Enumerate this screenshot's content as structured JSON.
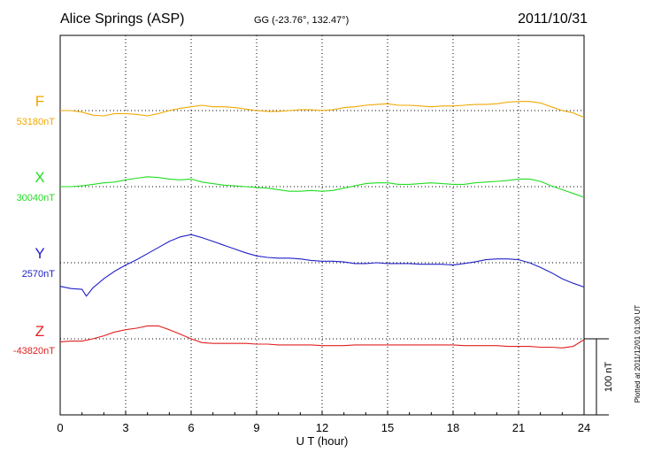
{
  "header": {
    "station": "Alice Springs (ASP)",
    "coords": "GG (-23.76°, 132.47°)",
    "date": "2011/10/31"
  },
  "plotted_note": "Plotted at 2011/12/01 01:00 UT",
  "scale_label": "100 nT",
  "chart_data": {
    "type": "line",
    "title": "Alice Springs (ASP)",
    "xlabel": "U T (hour)",
    "ylabel": "",
    "xlim": [
      0,
      24
    ],
    "xticks": [
      0,
      3,
      6,
      9,
      12,
      15,
      18,
      21,
      24
    ],
    "grid": true,
    "units": "nT",
    "scale_bar_nT": 100,
    "series": [
      {
        "name": "F",
        "baseline_label": "53180nT",
        "baseline": 53180,
        "color": "#f0a800",
        "x": [
          0,
          0.5,
          1,
          1.5,
          2,
          2.5,
          3,
          3.5,
          4,
          4.5,
          5,
          5.5,
          6,
          6.5,
          7,
          7.5,
          8,
          8.5,
          9,
          9.5,
          10,
          10.5,
          11,
          11.5,
          12,
          12.5,
          13,
          13.5,
          14,
          14.5,
          15,
          15.5,
          16,
          16.5,
          17,
          17.5,
          18,
          18.5,
          19,
          19.5,
          20,
          20.5,
          21,
          21.5,
          22,
          22.5,
          23,
          23.5,
          24
        ],
        "y": [
          53180,
          53180,
          53178,
          53174,
          53173,
          53176,
          53176,
          53175,
          53173,
          53176,
          53180,
          53183,
          53185,
          53187,
          53185,
          53185,
          53184,
          53182,
          53180,
          53179,
          53179,
          53180,
          53181,
          53181,
          53180,
          53181,
          53184,
          53185,
          53187,
          53188,
          53189,
          53187,
          53187,
          53186,
          53185,
          53186,
          53186,
          53187,
          53188,
          53188,
          53189,
          53191,
          53192,
          53192,
          53190,
          53185,
          53180,
          53177,
          53171
        ]
      },
      {
        "name": "X",
        "baseline_label": "30040nT",
        "baseline": 30040,
        "color": "#22dd22",
        "x": [
          0,
          0.5,
          1,
          1.5,
          2,
          2.5,
          3,
          3.5,
          4,
          4.5,
          5,
          5.5,
          6,
          6.5,
          7,
          7.5,
          8,
          8.5,
          9,
          9.5,
          10,
          10.5,
          11,
          11.5,
          12,
          12.5,
          13,
          13.5,
          14,
          14.5,
          15,
          15.5,
          16,
          16.5,
          17,
          17.5,
          18,
          18.5,
          19,
          19.5,
          20,
          20.5,
          21,
          21.5,
          22,
          22.5,
          23,
          23.5,
          24
        ],
        "y": [
          30040,
          30040,
          30041,
          30043,
          30045,
          30046,
          30049,
          30051,
          30053,
          30052,
          30050,
          30049,
          30050,
          30046,
          30044,
          30042,
          30041,
          30040,
          30039,
          30038,
          30036,
          30034,
          30034,
          30035,
          30034,
          30035,
          30038,
          30041,
          30044,
          30045,
          30045,
          30043,
          30043,
          30044,
          30045,
          30044,
          30043,
          30043,
          30045,
          30046,
          30047,
          30048,
          30050,
          30050,
          30047,
          30041,
          30036,
          30031,
          30026
        ]
      },
      {
        "name": "Y",
        "baseline_label": "2570nT",
        "baseline": 2570,
        "color": "#2020c8",
        "x": [
          0,
          0.5,
          1,
          1.2,
          1.5,
          2,
          2.5,
          3,
          3.5,
          4,
          4.5,
          5,
          5.5,
          6,
          6.5,
          7,
          7.5,
          8,
          8.5,
          9,
          9.5,
          10,
          10.5,
          11,
          11.5,
          12,
          12.5,
          13,
          13.5,
          14,
          14.5,
          15,
          15.5,
          16,
          16.5,
          17,
          17.5,
          18,
          18.5,
          19,
          19.5,
          20,
          20.5,
          21,
          21.5,
          22,
          22.5,
          23,
          23.5,
          24
        ],
        "y": [
          2539,
          2536,
          2535,
          2526,
          2537,
          2549,
          2559,
          2567,
          2574,
          2582,
          2590,
          2598,
          2604,
          2607,
          2603,
          2598,
          2593,
          2588,
          2583,
          2579,
          2577,
          2576,
          2576,
          2575,
          2573,
          2572,
          2572,
          2571,
          2569,
          2569,
          2570,
          2569,
          2569,
          2569,
          2568,
          2568,
          2568,
          2567,
          2569,
          2571,
          2574,
          2575,
          2575,
          2574,
          2570,
          2564,
          2557,
          2549,
          2543,
          2538
        ]
      },
      {
        "name": "Z",
        "baseline_label": "-43820nT",
        "baseline": -43820,
        "color": "#e02020",
        "x": [
          0,
          0.5,
          1,
          1.5,
          2,
          2.5,
          3,
          3.5,
          4,
          4.5,
          5,
          5.5,
          6,
          6.5,
          7,
          7.5,
          8,
          8.5,
          9,
          9.5,
          10,
          10.5,
          11,
          11.5,
          12,
          12.5,
          13,
          13.5,
          14,
          14.5,
          15,
          15.5,
          16,
          16.5,
          17,
          17.5,
          18,
          18.5,
          19,
          19.5,
          20,
          20.5,
          21,
          21.5,
          22,
          22.5,
          23,
          23.5,
          24
        ],
        "y": [
          -43824,
          -43823,
          -43823,
          -43820,
          -43816,
          -43811,
          -43808,
          -43806,
          -43803,
          -43803,
          -43808,
          -43814,
          -43820,
          -43825,
          -43826,
          -43826,
          -43826,
          -43826,
          -43827,
          -43827,
          -43828,
          -43828,
          -43828,
          -43828,
          -43829,
          -43829,
          -43829,
          -43828,
          -43828,
          -43828,
          -43828,
          -43828,
          -43828,
          -43828,
          -43828,
          -43828,
          -43828,
          -43829,
          -43829,
          -43829,
          -43829,
          -43830,
          -43830,
          -43830,
          -43831,
          -43831,
          -43832,
          -43830,
          -43821
        ]
      }
    ]
  }
}
